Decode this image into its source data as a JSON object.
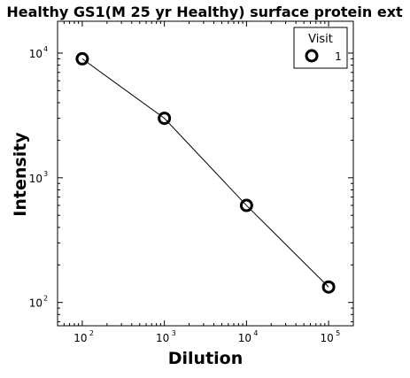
{
  "chart_data": {
    "type": "line",
    "title": "Healthy GS1(M 25 yr Healthy) surface protein ext",
    "xlabel": "Dilution",
    "ylabel": "Intensity",
    "x_scale": "log",
    "y_scale": "log",
    "xlim": [
      50,
      200000
    ],
    "ylim": [
      65,
      18000
    ],
    "x_ticks": [
      {
        "value": 100,
        "base": "10",
        "exp": "2"
      },
      {
        "value": 1000,
        "base": "10",
        "exp": "3"
      },
      {
        "value": 10000,
        "base": "10",
        "exp": "4"
      },
      {
        "value": 100000,
        "base": "10",
        "exp": "5"
      }
    ],
    "y_ticks": [
      {
        "value": 100,
        "base": "10",
        "exp": "2"
      },
      {
        "value": 1000,
        "base": "10",
        "exp": "3"
      },
      {
        "value": 10000,
        "base": "10",
        "exp": "4"
      }
    ],
    "grid": false,
    "legend": {
      "title": "Visit",
      "placement": "top-right"
    },
    "series": [
      {
        "name": "1",
        "x": [
          100,
          1000,
          10000,
          100000
        ],
        "y": [
          9000,
          3000,
          600,
          133
        ],
        "color": "#000000",
        "marker": "open-circle"
      }
    ]
  }
}
